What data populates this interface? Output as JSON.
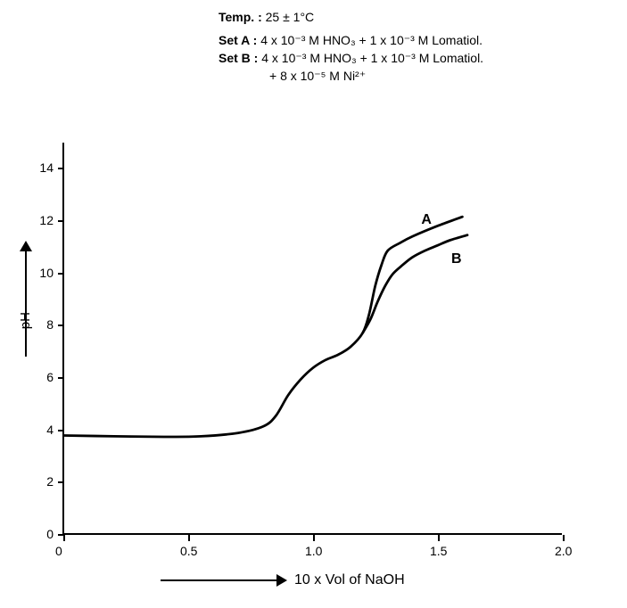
{
  "header": {
    "temp_label": "Temp. :",
    "temp_value": "25 ± 1°C",
    "setA_label": "Set A :",
    "setA_value": "4 x 10⁻³ M HNO₃ + 1 x 10⁻³ M Lomatiol.",
    "setB_label": "Set B :",
    "setB_line1": "4 x 10⁻³ M HNO₃ + 1 x 10⁻³ M Lomatiol.",
    "setB_line2": "+ 8 x 10⁻⁵ M Ni²⁺"
  },
  "chart": {
    "type": "line",
    "background_color": "#ffffff",
    "axis_color": "#000000",
    "line_width": 2.8,
    "xlim": [
      0,
      2.0
    ],
    "ylim": [
      0,
      15
    ],
    "xticks": [
      0,
      0.5,
      1.0,
      1.5,
      2.0
    ],
    "yticks": [
      0,
      2,
      4,
      6,
      8,
      10,
      12,
      14
    ],
    "xtick_labels": [
      "0",
      "0.5",
      "1.0",
      "1.5",
      "2.0"
    ],
    "ytick_labels": [
      "0",
      "2",
      "4",
      "6",
      "8",
      "10",
      "12",
      "14"
    ],
    "xlabel": "10 x Vol of NaOH",
    "ylabel": "pH",
    "label_fontsize": 15,
    "tick_fontsize": 14,
    "series": {
      "A": {
        "label": "A",
        "color": "#000000",
        "points": [
          [
            0.0,
            3.75
          ],
          [
            0.2,
            3.72
          ],
          [
            0.4,
            3.7
          ],
          [
            0.55,
            3.72
          ],
          [
            0.7,
            3.85
          ],
          [
            0.8,
            4.1
          ],
          [
            0.85,
            4.5
          ],
          [
            0.9,
            5.3
          ],
          [
            0.95,
            5.9
          ],
          [
            1.0,
            6.35
          ],
          [
            1.05,
            6.65
          ],
          [
            1.1,
            6.85
          ],
          [
            1.15,
            7.15
          ],
          [
            1.2,
            7.7
          ],
          [
            1.225,
            8.4
          ],
          [
            1.25,
            9.5
          ],
          [
            1.275,
            10.3
          ],
          [
            1.3,
            10.85
          ],
          [
            1.35,
            11.15
          ],
          [
            1.4,
            11.4
          ],
          [
            1.5,
            11.8
          ],
          [
            1.6,
            12.15
          ]
        ]
      },
      "B": {
        "label": "B",
        "color": "#000000",
        "points": [
          [
            1.2,
            7.7
          ],
          [
            1.23,
            8.2
          ],
          [
            1.26,
            8.9
          ],
          [
            1.29,
            9.5
          ],
          [
            1.32,
            9.95
          ],
          [
            1.36,
            10.3
          ],
          [
            1.4,
            10.6
          ],
          [
            1.45,
            10.85
          ],
          [
            1.5,
            11.05
          ],
          [
            1.55,
            11.25
          ],
          [
            1.62,
            11.45
          ]
        ]
      }
    },
    "series_label_positions": {
      "A": [
        1.43,
        12.0
      ],
      "B": [
        1.55,
        10.7
      ]
    }
  }
}
